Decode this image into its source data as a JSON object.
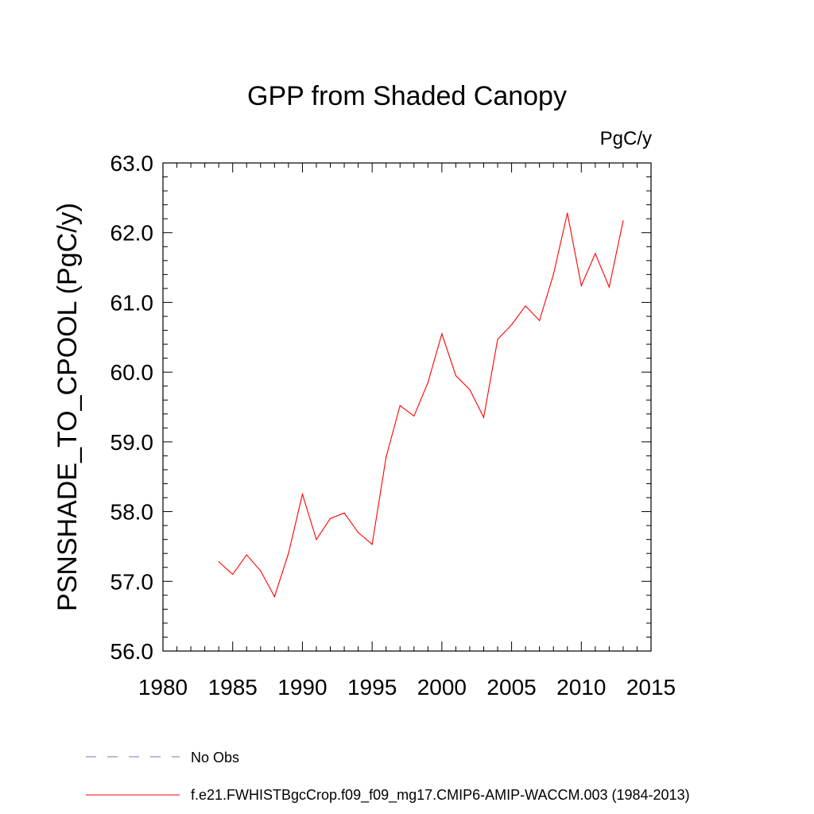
{
  "chart_data": {
    "type": "line",
    "title": "GPP from Shaded Canopy",
    "units_label": "PgC/y",
    "ylabel": "PSNSHADE_TO_CPOOL  (PgC/y)",
    "xlabel": "",
    "xlim": [
      1980,
      2015
    ],
    "ylim": [
      56.0,
      63.0
    ],
    "x_ticks": [
      1980,
      1985,
      1990,
      1995,
      2000,
      2005,
      2010,
      2015
    ],
    "x_tick_labels": [
      "1980",
      "1985",
      "1990",
      "1995",
      "2000",
      "2005",
      "2010",
      "2015"
    ],
    "y_ticks": [
      56.0,
      57.0,
      58.0,
      59.0,
      60.0,
      61.0,
      62.0,
      63.0
    ],
    "y_tick_labels": [
      "56.0",
      "57.0",
      "58.0",
      "59.0",
      "60.0",
      "61.0",
      "62.0",
      "63.0"
    ],
    "grid": false,
    "legend_position": "bottom",
    "series": [
      {
        "name": "f.e21.FWHISTBgcCrop.f09_f09_mg17.CMIP6-AMIP-WACCM.003 (1984-2013)",
        "color": "#ff0000",
        "dash": "solid",
        "x": [
          1984,
          1985,
          1986,
          1987,
          1988,
          1989,
          1990,
          1991,
          1992,
          1993,
          1994,
          1995,
          1996,
          1997,
          1998,
          1999,
          2000,
          2001,
          2002,
          2003,
          2004,
          2005,
          2006,
          2007,
          2008,
          2009,
          2010,
          2011,
          2012,
          2013
        ],
        "values": [
          57.28,
          57.1,
          57.38,
          57.15,
          56.78,
          57.4,
          58.25,
          57.6,
          57.9,
          57.98,
          57.7,
          57.53,
          58.78,
          59.52,
          59.37,
          59.85,
          60.55,
          59.95,
          59.75,
          59.35,
          60.47,
          60.68,
          60.95,
          60.74,
          61.4,
          62.28,
          61.24,
          61.7,
          61.22,
          62.17
        ]
      }
    ],
    "legend": [
      {
        "label": "No Obs",
        "color": "#7b6fbf",
        "dash": "dashed"
      },
      {
        "label": "f.e21.FWHISTBgcCrop.f09_f09_mg17.CMIP6-AMIP-WACCM.003 (1984-2013)",
        "color": "#ff0000",
        "dash": "solid"
      }
    ]
  }
}
